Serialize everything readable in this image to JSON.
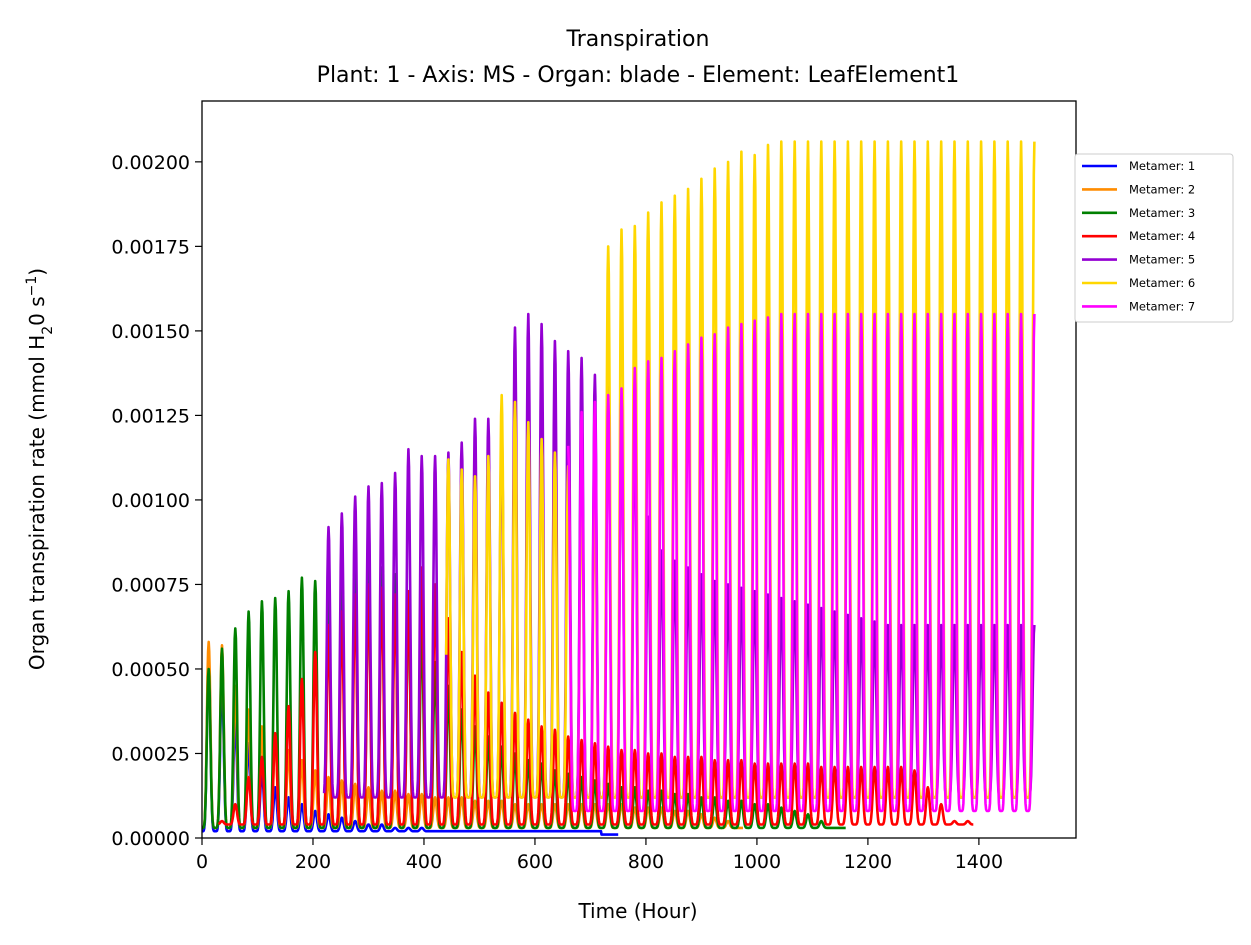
{
  "chart_data": {
    "type": "line",
    "title": "Transpiration",
    "subtitle": "Plant: 1 - Axis: MS - Organ: blade - Element: LeafElement1",
    "xlabel": "Time (Hour)",
    "ylabel_prefix": "Organ transpiration rate (mmol H",
    "ylabel_sub": "2",
    "ylabel_mid": "0 s",
    "ylabel_sup": "−1",
    "ylabel_suffix": ")",
    "xlim": [
      0,
      1575
    ],
    "ylim": [
      0,
      0.00218
    ],
    "xticks": [
      0,
      200,
      400,
      600,
      800,
      1000,
      1200,
      1400
    ],
    "yticks": [
      "0.00000",
      "0.00025",
      "0.00050",
      "0.00075",
      "0.00100",
      "0.00125",
      "0.00150",
      "0.00175",
      "0.00200"
    ],
    "ytick_values": [
      0,
      0.00025,
      0.0005,
      0.00075,
      0.001,
      0.00125,
      0.0015,
      0.00175,
      0.002
    ],
    "legend_placement": "outside-right-top",
    "grid": false,
    "series": [
      {
        "name": "Metamer: 1",
        "color": "#0000ff",
        "start": 0,
        "end": 750,
        "base": 2e-05,
        "peaks": [
          0.00053,
          0.00048,
          0.00035,
          0.00028,
          0.0002,
          0.00015,
          0.00012,
          0.0001,
          8e-05,
          7e-05,
          6e-05,
          5e-05,
          4e-05,
          4e-05,
          3e-05,
          3e-05,
          3e-05,
          2e-05,
          2e-05,
          2e-05,
          2e-05,
          2e-05,
          2e-05,
          2e-05,
          2e-05,
          2e-05,
          2e-05,
          2e-05,
          2e-05,
          2e-05,
          1e-05,
          1e-05
        ]
      },
      {
        "name": "Metamer: 2",
        "color": "#ff8c00",
        "start": 0,
        "end": 975,
        "base": 3e-05,
        "peaks": [
          0.00058,
          0.00057,
          0.00045,
          0.00038,
          0.00033,
          0.0003,
          0.00026,
          0.00023,
          0.0002,
          0.00018,
          0.00017,
          0.00016,
          0.00015,
          0.00014,
          0.00014,
          0.00013,
          0.00013,
          0.00012,
          0.00012,
          0.00012,
          0.00011,
          0.00011,
          0.00011,
          0.0001,
          0.0001,
          0.0001,
          0.0001,
          0.0001,
          0.0001,
          0.0001,
          0.0001,
          0.0001,
          9e-05,
          9e-05,
          9e-05,
          8e-05,
          8e-05,
          7e-05,
          6e-05,
          5e-05,
          3e-05
        ]
      },
      {
        "name": "Metamer: 3",
        "color": "#008000",
        "start": 0,
        "end": 1160,
        "base": 3e-05,
        "peaks": [
          0.0005,
          0.00056,
          0.00062,
          0.00067,
          0.0007,
          0.00071,
          0.00073,
          0.00077,
          0.00076,
          0.0008,
          0.00078,
          0.00083,
          0.00082,
          0.0008,
          0.00078,
          0.00072,
          0.00062,
          0.00052,
          0.00045,
          0.00038,
          0.00033,
          0.0003,
          0.00027,
          0.00025,
          0.00023,
          0.00022,
          0.0002,
          0.00019,
          0.00018,
          0.00017,
          0.00016,
          0.00015,
          0.00015,
          0.00014,
          0.00014,
          0.00013,
          0.00013,
          0.00012,
          0.00012,
          0.00011,
          0.00011,
          0.0001,
          0.0001,
          9e-05,
          8e-05,
          7e-05,
          5e-05,
          3e-05
        ]
      },
      {
        "name": "Metamer: 4",
        "color": "#ff0000",
        "start": 30,
        "end": 1390,
        "base": 4e-05,
        "peaks": [
          2e-05,
          5e-05,
          0.0001,
          0.00018,
          0.00024,
          0.00031,
          0.00039,
          0.00047,
          0.00055,
          0.00063,
          0.00067,
          0.00072,
          0.00075,
          0.00074,
          0.00072,
          0.00073,
          0.0008,
          0.00075,
          0.00065,
          0.00055,
          0.00048,
          0.00043,
          0.0004,
          0.00037,
          0.00035,
          0.00033,
          0.00032,
          0.0003,
          0.00029,
          0.00028,
          0.00027,
          0.00026,
          0.00026,
          0.00025,
          0.00025,
          0.00024,
          0.00024,
          0.00024,
          0.00023,
          0.00023,
          0.00023,
          0.00022,
          0.00022,
          0.00022,
          0.00022,
          0.00022,
          0.00021,
          0.00021,
          0.00021,
          0.00021,
          0.00021,
          0.00021,
          0.00021,
          0.0002,
          0.00015,
          0.0001,
          5e-05
        ]
      },
      {
        "name": "Metamer: 5",
        "color": "#9400d3",
        "start": 220,
        "end": 1500,
        "base": 0.00012,
        "peaks": [
          3e-05,
          8e-05,
          0.00014,
          0.0002,
          0.00028,
          0.00042,
          0.00058,
          0.00074,
          0.00083,
          0.00092,
          0.00096,
          0.00101,
          0.00104,
          0.00105,
          0.00108,
          0.00115,
          0.00113,
          0.00113,
          0.00114,
          0.00117,
          0.00124,
          0.00124,
          0.00122,
          0.00151,
          0.00155,
          0.00152,
          0.00147,
          0.00144,
          0.00142,
          0.00137,
          0.00135,
          0.00132,
          0.00128,
          0.00095,
          0.00085,
          0.00082,
          0.0008,
          0.00078,
          0.00076,
          0.00075,
          0.00074,
          0.00073,
          0.00072,
          0.00071,
          0.0007,
          0.00069,
          0.00068,
          0.00067,
          0.00066,
          0.00065,
          0.00064,
          0.00063,
          0.00063,
          0.00063
        ]
      },
      {
        "name": "Metamer: 6",
        "color": "#ffd700",
        "start": 440,
        "end": 1500,
        "base": 0.00012,
        "peaks": [
          3e-05,
          7e-05,
          0.00014,
          0.00023,
          0.00036,
          0.00052,
          0.00071,
          0.00088,
          0.00102,
          0.00113,
          0.00116,
          0.00119,
          0.00123,
          0.00125,
          0.00122,
          0.0012,
          0.00119,
          0.00116,
          0.00112,
          0.00109,
          0.00107,
          0.00113,
          0.00131,
          0.00129,
          0.00123,
          0.00118,
          0.00114,
          0.0011,
          0.00107,
          0.00103,
          0.00175,
          0.0018,
          0.00181,
          0.00185,
          0.00188,
          0.0019,
          0.00192,
          0.00195,
          0.00198,
          0.002,
          0.00203,
          0.00202,
          0.00205,
          0.00206
        ]
      },
      {
        "name": "Metamer: 7",
        "color": "#ff00ff",
        "start": 660,
        "end": 1500,
        "base": 8e-05,
        "peaks": [
          1e-05,
          3e-05,
          5e-05,
          9e-05,
          0.00015,
          0.00022,
          0.00028,
          0.00036,
          0.00046,
          0.00052,
          0.00062,
          0.00075,
          0.00085,
          0.00093,
          0.00101,
          0.00103,
          0.00105,
          0.00104,
          0.00103,
          0.00098,
          0.00094,
          0.00088,
          0.00083,
          0.00082,
          0.00081,
          0.00079,
          0.00113,
          0.00116,
          0.00126,
          0.00129,
          0.00131,
          0.00133,
          0.00139,
          0.00141,
          0.00142,
          0.00144,
          0.00146,
          0.00148,
          0.00149,
          0.00151,
          0.00152,
          0.00153,
          0.00154,
          0.00155
        ]
      }
    ]
  }
}
